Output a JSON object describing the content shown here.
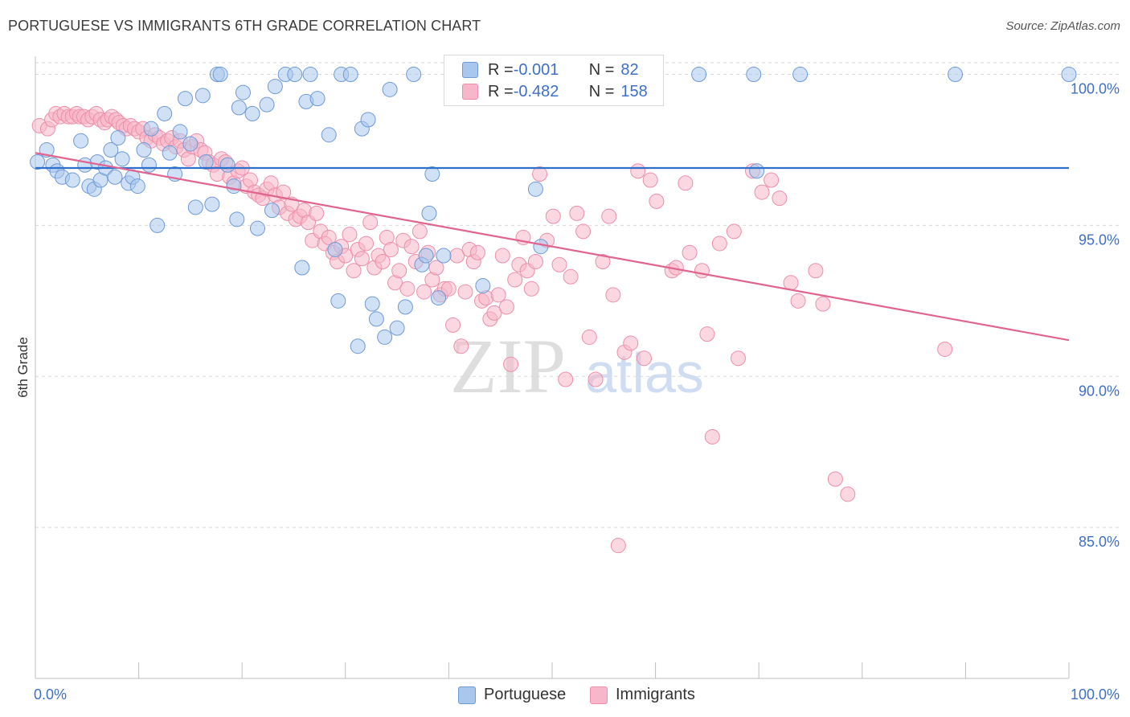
{
  "title": "PORTUGUESE VS IMMIGRANTS 6TH GRADE CORRELATION CHART",
  "source": "Source: ZipAtlas.com",
  "watermark": {
    "zip": "ZIP",
    "atlas": "atlas"
  },
  "legend": {
    "rows": [
      {
        "r_label": "R = ",
        "r_value": "-0.001",
        "n_label": "N = ",
        "n_value": "82"
      },
      {
        "r_label": "R = ",
        "r_value": "-0.482",
        "n_label": "N = ",
        "n_value": "158"
      }
    ]
  },
  "colors": {
    "portuguese_fill": "#a9c6ec",
    "portuguese_stroke": "#6f9ad6",
    "portuguese_line": "#2d6fcc",
    "immigrants_fill": "#f7b6c9",
    "immigrants_stroke": "#ec8fab",
    "immigrants_line": "#e0648f",
    "tick_label": "#3e6fc9",
    "grid": "#d9d9d9"
  },
  "chart_data": {
    "type": "scatter",
    "title": "PORTUGUESE VS IMMIGRANTS 6TH GRADE CORRELATION CHART",
    "xlabel": "",
    "ylabel": "6th Grade",
    "xlim": [
      0,
      100
    ],
    "ylim": [
      80.0,
      100.6
    ],
    "x_tick_labels": [
      "0.0%",
      "100.0%"
    ],
    "y_ticks": [
      85,
      90,
      95,
      100
    ],
    "y_tick_labels": [
      "85.0%",
      "90.0%",
      "95.0%",
      "100.0%"
    ],
    "grid": true,
    "legend_position": "bottom",
    "series": [
      {
        "name": "Portuguese",
        "R": -0.001,
        "N": 82,
        "trend": {
          "x": [
            0,
            100
          ],
          "y": [
            96.9,
            96.9
          ]
        },
        "points": [
          [
            0.2,
            97.1
          ],
          [
            1.1,
            97.5
          ],
          [
            1.7,
            97.0
          ],
          [
            2.1,
            96.8
          ],
          [
            2.6,
            96.6
          ],
          [
            3.6,
            96.5
          ],
          [
            4.4,
            97.8
          ],
          [
            4.8,
            97.0
          ],
          [
            5.2,
            96.3
          ],
          [
            5.7,
            96.2
          ],
          [
            6.0,
            97.1
          ],
          [
            6.3,
            96.5
          ],
          [
            6.8,
            96.9
          ],
          [
            7.3,
            97.5
          ],
          [
            7.7,
            96.6
          ],
          [
            8.0,
            97.9
          ],
          [
            8.4,
            97.2
          ],
          [
            9.0,
            96.4
          ],
          [
            9.4,
            96.6
          ],
          [
            9.9,
            96.3
          ],
          [
            10.5,
            97.5
          ],
          [
            11.0,
            97.0
          ],
          [
            11.2,
            98.2
          ],
          [
            11.8,
            95.0
          ],
          [
            12.5,
            98.7
          ],
          [
            13.0,
            97.4
          ],
          [
            13.5,
            96.7
          ],
          [
            14.0,
            98.1
          ],
          [
            14.5,
            99.2
          ],
          [
            15.0,
            97.7
          ],
          [
            15.5,
            95.6
          ],
          [
            16.2,
            99.3
          ],
          [
            16.5,
            97.1
          ],
          [
            17.1,
            95.7
          ],
          [
            17.6,
            100.0
          ],
          [
            17.9,
            100.0
          ],
          [
            18.6,
            97.0
          ],
          [
            19.2,
            96.3
          ],
          [
            19.5,
            95.2
          ],
          [
            19.7,
            98.9
          ],
          [
            20.1,
            99.4
          ],
          [
            21.0,
            98.7
          ],
          [
            21.5,
            94.9
          ],
          [
            22.4,
            99.0
          ],
          [
            22.9,
            95.5
          ],
          [
            23.2,
            99.6
          ],
          [
            24.2,
            100.0
          ],
          [
            25.1,
            100.0
          ],
          [
            25.8,
            93.6
          ],
          [
            26.2,
            99.1
          ],
          [
            26.6,
            100.0
          ],
          [
            27.3,
            99.2
          ],
          [
            28.4,
            98.0
          ],
          [
            29.0,
            94.2
          ],
          [
            29.3,
            92.5
          ],
          [
            29.6,
            100.0
          ],
          [
            30.5,
            100.0
          ],
          [
            31.2,
            91.0
          ],
          [
            31.6,
            98.2
          ],
          [
            32.2,
            98.5
          ],
          [
            32.6,
            92.4
          ],
          [
            33.0,
            91.9
          ],
          [
            33.8,
            91.3
          ],
          [
            34.3,
            99.5
          ],
          [
            35.0,
            91.6
          ],
          [
            35.8,
            92.3
          ],
          [
            36.6,
            100.0
          ],
          [
            37.4,
            93.7
          ],
          [
            37.8,
            94.0
          ],
          [
            38.1,
            95.4
          ],
          [
            38.4,
            96.7
          ],
          [
            39.0,
            92.6
          ],
          [
            39.5,
            94.0
          ],
          [
            43.3,
            93.0
          ],
          [
            48.4,
            96.2
          ],
          [
            48.9,
            94.3
          ],
          [
            64.2,
            100.0
          ],
          [
            69.5,
            100.0
          ],
          [
            69.8,
            96.8
          ],
          [
            74.0,
            100.0
          ],
          [
            89.0,
            100.0
          ],
          [
            100.0,
            100.0
          ]
        ]
      },
      {
        "name": "Immigrants",
        "R": -0.482,
        "N": 158,
        "trend": {
          "x": [
            0,
            100
          ],
          "y": [
            97.4,
            91.2
          ]
        },
        "points": [
          [
            0.4,
            98.3
          ],
          [
            1.2,
            98.2
          ],
          [
            1.6,
            98.5
          ],
          [
            2.0,
            98.7
          ],
          [
            2.4,
            98.6
          ],
          [
            2.8,
            98.7
          ],
          [
            3.2,
            98.6
          ],
          [
            3.6,
            98.6
          ],
          [
            4.0,
            98.7
          ],
          [
            4.3,
            98.6
          ],
          [
            4.7,
            98.6
          ],
          [
            5.1,
            98.5
          ],
          [
            5.5,
            98.6
          ],
          [
            5.9,
            98.7
          ],
          [
            6.3,
            98.5
          ],
          [
            6.7,
            98.4
          ],
          [
            7.0,
            98.5
          ],
          [
            7.4,
            98.6
          ],
          [
            7.8,
            98.5
          ],
          [
            8.1,
            98.4
          ],
          [
            8.5,
            98.3
          ],
          [
            8.8,
            98.2
          ],
          [
            9.2,
            98.3
          ],
          [
            9.6,
            98.2
          ],
          [
            10.0,
            98.1
          ],
          [
            10.4,
            98.2
          ],
          [
            10.8,
            97.9
          ],
          [
            11.2,
            97.8
          ],
          [
            11.6,
            98.0
          ],
          [
            12.0,
            97.9
          ],
          [
            12.4,
            97.7
          ],
          [
            12.8,
            97.8
          ],
          [
            13.2,
            97.9
          ],
          [
            13.6,
            97.6
          ],
          [
            14.0,
            97.8
          ],
          [
            14.4,
            97.5
          ],
          [
            14.8,
            97.2
          ],
          [
            15.2,
            97.6
          ],
          [
            15.6,
            97.8
          ],
          [
            16.0,
            97.5
          ],
          [
            16.4,
            97.4
          ],
          [
            16.8,
            97.1
          ],
          [
            17.2,
            97.0
          ],
          [
            17.6,
            96.7
          ],
          [
            18.0,
            97.2
          ],
          [
            18.4,
            97.1
          ],
          [
            18.8,
            96.6
          ],
          [
            19.2,
            96.4
          ],
          [
            19.6,
            96.8
          ],
          [
            20.0,
            96.9
          ],
          [
            20.4,
            96.3
          ],
          [
            20.8,
            96.5
          ],
          [
            21.2,
            96.1
          ],
          [
            21.6,
            96.0
          ],
          [
            22.0,
            95.9
          ],
          [
            22.4,
            96.2
          ],
          [
            22.8,
            96.4
          ],
          [
            23.2,
            96.0
          ],
          [
            23.6,
            95.6
          ],
          [
            24.0,
            96.1
          ],
          [
            24.4,
            95.4
          ],
          [
            24.8,
            95.7
          ],
          [
            25.2,
            95.2
          ],
          [
            25.6,
            95.3
          ],
          [
            26.0,
            95.5
          ],
          [
            26.4,
            95.1
          ],
          [
            26.8,
            94.5
          ],
          [
            27.2,
            95.4
          ],
          [
            27.6,
            94.8
          ],
          [
            28.0,
            94.4
          ],
          [
            28.4,
            94.6
          ],
          [
            28.8,
            94.1
          ],
          [
            29.2,
            93.8
          ],
          [
            29.6,
            94.3
          ],
          [
            30.0,
            94.0
          ],
          [
            30.4,
            94.7
          ],
          [
            30.8,
            93.5
          ],
          [
            31.2,
            94.2
          ],
          [
            31.6,
            93.9
          ],
          [
            32.0,
            94.4
          ],
          [
            32.4,
            95.1
          ],
          [
            32.8,
            93.6
          ],
          [
            33.2,
            94.0
          ],
          [
            33.6,
            93.8
          ],
          [
            34.0,
            94.6
          ],
          [
            34.4,
            94.2
          ],
          [
            34.8,
            93.1
          ],
          [
            35.2,
            93.5
          ],
          [
            35.6,
            94.5
          ],
          [
            36.0,
            92.9
          ],
          [
            36.4,
            94.3
          ],
          [
            36.8,
            93.8
          ],
          [
            37.2,
            94.8
          ],
          [
            37.6,
            92.8
          ],
          [
            38.0,
            94.1
          ],
          [
            38.4,
            93.2
          ],
          [
            38.8,
            93.6
          ],
          [
            39.2,
            92.7
          ],
          [
            39.6,
            92.9
          ],
          [
            40.0,
            92.9
          ],
          [
            40.4,
            91.7
          ],
          [
            40.8,
            94.0
          ],
          [
            41.2,
            91.0
          ],
          [
            41.6,
            92.8
          ],
          [
            42.0,
            94.2
          ],
          [
            42.4,
            93.8
          ],
          [
            42.8,
            94.1
          ],
          [
            43.2,
            92.5
          ],
          [
            43.6,
            92.6
          ],
          [
            44.0,
            91.9
          ],
          [
            44.4,
            92.1
          ],
          [
            44.8,
            92.7
          ],
          [
            45.2,
            94.0
          ],
          [
            45.6,
            92.3
          ],
          [
            46.0,
            90.4
          ],
          [
            46.4,
            93.2
          ],
          [
            46.8,
            93.7
          ],
          [
            47.2,
            94.6
          ],
          [
            47.6,
            93.5
          ],
          [
            48.0,
            92.9
          ],
          [
            48.4,
            93.8
          ],
          [
            48.8,
            96.7
          ],
          [
            49.5,
            94.5
          ],
          [
            50.1,
            95.3
          ],
          [
            50.7,
            93.7
          ],
          [
            51.3,
            89.9
          ],
          [
            51.8,
            93.3
          ],
          [
            52.4,
            95.4
          ],
          [
            53.0,
            94.8
          ],
          [
            53.6,
            91.3
          ],
          [
            54.2,
            89.9
          ],
          [
            54.9,
            93.8
          ],
          [
            55.5,
            95.3
          ],
          [
            55.9,
            92.7
          ],
          [
            56.4,
            84.4
          ],
          [
            57.0,
            90.8
          ],
          [
            57.6,
            91.1
          ],
          [
            58.3,
            96.8
          ],
          [
            58.9,
            90.6
          ],
          [
            59.5,
            96.5
          ],
          [
            60.1,
            95.8
          ],
          [
            61.6,
            93.5
          ],
          [
            62.0,
            93.6
          ],
          [
            62.9,
            96.4
          ],
          [
            63.3,
            94.1
          ],
          [
            64.5,
            93.5
          ],
          [
            65.0,
            91.4
          ],
          [
            65.5,
            88.0
          ],
          [
            66.2,
            94.4
          ],
          [
            67.6,
            94.8
          ],
          [
            68.0,
            90.6
          ],
          [
            69.4,
            96.8
          ],
          [
            70.3,
            96.1
          ],
          [
            71.2,
            96.5
          ],
          [
            72.0,
            95.9
          ],
          [
            73.1,
            93.1
          ],
          [
            73.8,
            92.5
          ],
          [
            75.5,
            93.5
          ],
          [
            76.2,
            92.4
          ],
          [
            77.4,
            86.6
          ],
          [
            78.6,
            86.1
          ],
          [
            88.0,
            90.9
          ]
        ]
      }
    ]
  },
  "bottom_legend": {
    "items": [
      {
        "label": "Portuguese"
      },
      {
        "label": "Immigrants"
      }
    ]
  }
}
